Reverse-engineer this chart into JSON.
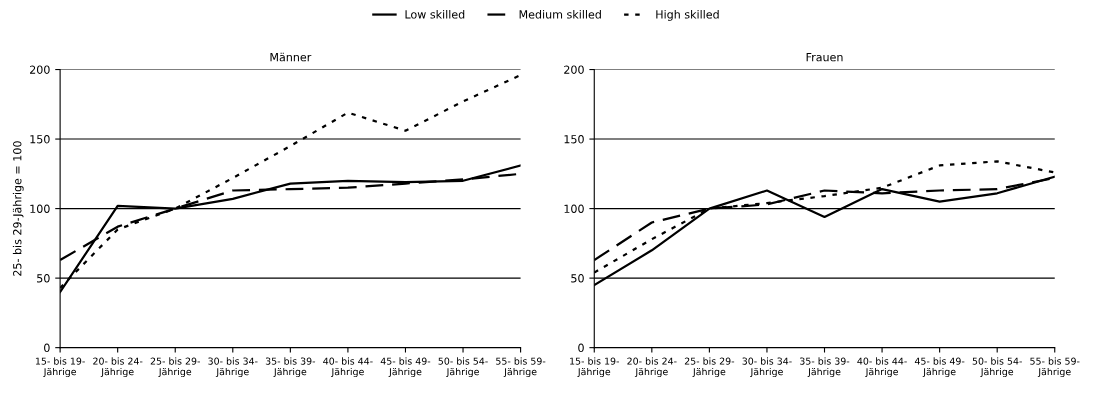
{
  "chart_data": [
    {
      "type": "line",
      "title": "Männer",
      "ylabel": "25- bis 29-Jährige = 100",
      "categories": [
        "15- bis 19- Jährige",
        "20- bis 24- Jährige",
        "25- bis 29- Jährige",
        "30- bis 34- Jährige",
        "35- bis 39- Jährige",
        "40- bis 44- Jährige",
        "45- bis 49- Jährige",
        "50- bis 54- Jährige",
        "55- bis 59- Jährige"
      ],
      "series": [
        {
          "name": "Low skilled",
          "color": "#000000",
          "line_style": "solid",
          "values": [
            40,
            102,
            100,
            107,
            118,
            120,
            119,
            120,
            131
          ]
        },
        {
          "name": "Medium skilled",
          "color": "#000000",
          "line_style": "dashed",
          "values": [
            63,
            87,
            100,
            113,
            114,
            115,
            118,
            121,
            125
          ]
        },
        {
          "name": "High skilled",
          "color": "#000000",
          "line_style": "dotted",
          "values": [
            43,
            85,
            100,
            122,
            145,
            169,
            156,
            177,
            196
          ]
        }
      ],
      "ylim": [
        0,
        200
      ],
      "yticks": [
        0,
        50,
        100,
        150,
        200
      ],
      "grid": "y",
      "legend": "top"
    },
    {
      "type": "line",
      "title": "Frauen",
      "categories": [
        "15- bis 19- Jährige",
        "20- bis 24- Jährige",
        "25- bis 29- Jährige",
        "30- bis 34- Jährige",
        "35- bis 39- Jährige",
        "40- bis 44- Jährige",
        "45- bis 49- Jährige",
        "50- bis 54- Jährige",
        "55- bis 59- Jährige"
      ],
      "series": [
        {
          "color": "#000000",
          "line_style": "solid",
          "values": [
            45,
            70,
            100,
            113,
            94,
            114,
            105,
            111,
            123
          ]
        },
        {
          "color": "#000000",
          "line_style": "dashed",
          "values": [
            63,
            90,
            100,
            103,
            113,
            111,
            113,
            114,
            122
          ]
        },
        {
          "color": "#000000",
          "line_style": "dotted",
          "values": [
            54,
            78,
            100,
            104,
            109,
            115,
            131,
            134,
            126
          ]
        }
      ],
      "ylim": [
        0,
        200
      ],
      "yticks": [
        0,
        50,
        100,
        150,
        200
      ],
      "grid": "y"
    }
  ]
}
